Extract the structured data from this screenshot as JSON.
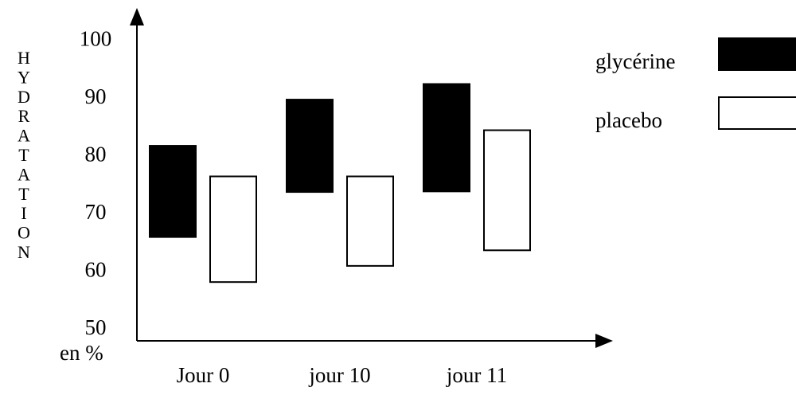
{
  "chart_data": {
    "type": "bar",
    "subtype": "floating-range",
    "title": "",
    "xlabel": "",
    "ylabel": "HYDRATATION",
    "yunit": "en %",
    "ylim": [
      50,
      100
    ],
    "yticks": [
      100,
      90,
      80,
      70,
      60,
      50
    ],
    "categories": [
      "Jour 0",
      "jour 10",
      "jour 11"
    ],
    "series": [
      {
        "name": "glycérine",
        "color": "#000000",
        "ranges": [
          [
            65.5,
            81.3
          ],
          [
            73.3,
            89.3
          ],
          [
            73.4,
            92.0
          ]
        ]
      },
      {
        "name": "placebo",
        "color": "#ffffff",
        "ranges": [
          [
            57.7,
            76.0
          ],
          [
            60.5,
            76.0
          ],
          [
            63.2,
            84.0
          ]
        ]
      }
    ],
    "grid": false,
    "legend_position": "top-right"
  }
}
